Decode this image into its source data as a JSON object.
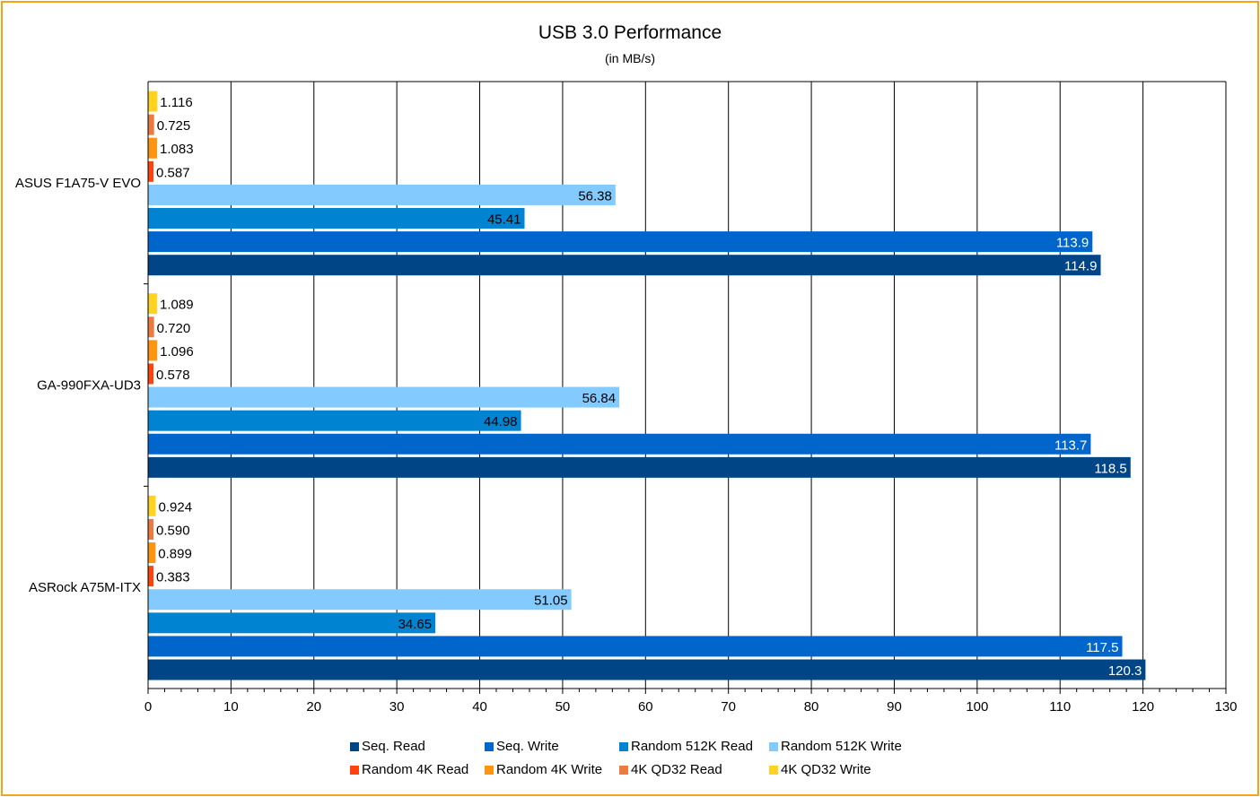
{
  "chart_data": {
    "type": "bar",
    "orientation": "horizontal",
    "title": "USB 3.0 Performance",
    "subtitle": "(in MB/s)",
    "xlabel": "",
    "ylabel": "",
    "xlim": [
      0,
      130
    ],
    "x_ticks": [
      "0",
      "10",
      "20",
      "30",
      "40",
      "50",
      "60",
      "70",
      "80",
      "90",
      "100",
      "110",
      "120",
      "130"
    ],
    "grid": true,
    "legend_position": "bottom",
    "categories": [
      "ASUS F1A75-V EVO",
      "GA-990FXA-UD3",
      "ASRock A75M-ITX"
    ],
    "series": [
      {
        "name": "Seq. Read",
        "color": "#004586",
        "values": [
          114.9,
          118.5,
          120.3
        ],
        "labels": [
          "114.9",
          "118.5",
          "120.3"
        ]
      },
      {
        "name": "Seq. Write",
        "color": "#0066cc",
        "values": [
          113.9,
          113.7,
          117.5
        ],
        "labels": [
          "113.9",
          "113.7",
          "117.5"
        ]
      },
      {
        "name": "Random 512K Read",
        "color": "#0084d1",
        "values": [
          45.41,
          44.98,
          34.65
        ],
        "labels": [
          "45.41",
          "44.98",
          "34.65"
        ]
      },
      {
        "name": "Random 512K Write",
        "color": "#83caff",
        "values": [
          56.38,
          56.84,
          51.05
        ],
        "labels": [
          "56.38",
          "56.84",
          "51.05"
        ]
      },
      {
        "name": "Random 4K Read",
        "color": "#ff420e",
        "values": [
          0.587,
          0.578,
          0.383
        ],
        "labels": [
          "0.587",
          "0.578",
          "0.383"
        ]
      },
      {
        "name": "Random 4K Write",
        "color": "#ff950e",
        "values": [
          1.083,
          1.096,
          0.899
        ],
        "labels": [
          "1.083",
          "1.096",
          "0.899"
        ]
      },
      {
        "name": "4K QD32 Read",
        "color": "#ed7a3e",
        "values": [
          0.725,
          0.72,
          0.59
        ],
        "labels": [
          "0.725",
          "0.720",
          "0.590"
        ]
      },
      {
        "name": "4K QD32 Write",
        "color": "#ffd320",
        "values": [
          1.116,
          1.089,
          0.924
        ],
        "labels": [
          "1.116",
          "1.089",
          "0.924"
        ]
      }
    ]
  }
}
